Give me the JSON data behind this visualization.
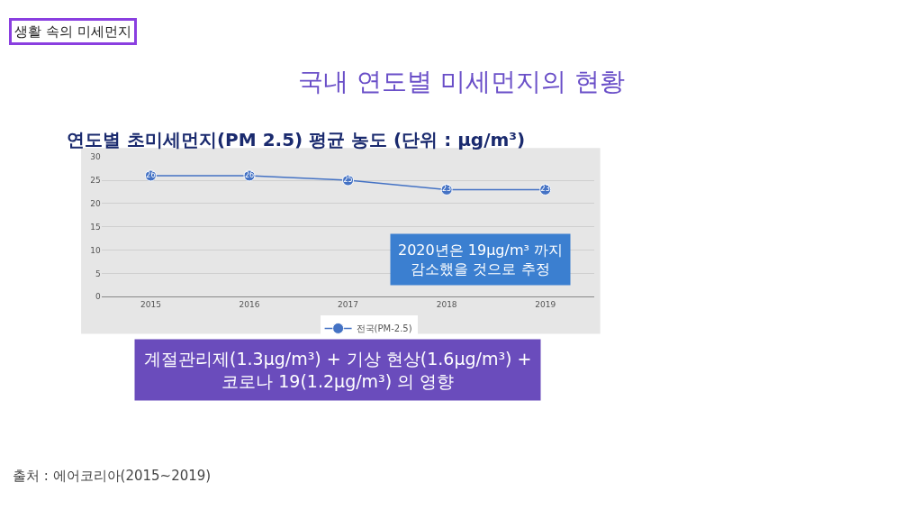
{
  "chart_data": {
    "type": "line",
    "title": "국내 연도별 미세먼지의 현황",
    "subtitle": "연도별 초미세먼지(PM 2.5) 평균 농도 (단위 : μg/m³)",
    "categories": [
      "2015",
      "2016",
      "2017",
      "2018",
      "2019"
    ],
    "series": [
      {
        "name": "전국(PM-2.5)",
        "color": "#4472c4",
        "values": [
          26,
          26,
          25,
          23,
          23
        ]
      }
    ],
    "ylim": [
      0,
      30
    ],
    "yticks": [
      0,
      5,
      10,
      15,
      20,
      25,
      30
    ],
    "grid": "y",
    "legend": "bottom",
    "marker": "circle",
    "line_style": "solid",
    "data_labels": true,
    "annotations": [
      "생활 속의 미세먼지",
      "2020년은 19μg/m³ 까지\n감소했을 것으로 추정",
      "계절관리제(1.3μg/m³) + 기상 현상(1.6μg/m³) +\n코로나 19(1.2μg/m³) 의 영향",
      "출처 : 에어코리아(2015~2019)"
    ]
  }
}
